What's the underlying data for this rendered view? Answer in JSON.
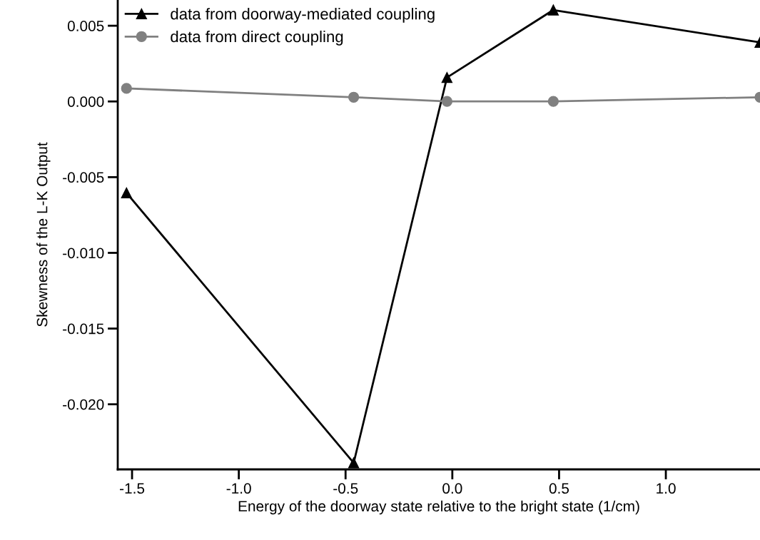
{
  "chart_data": {
    "type": "line",
    "xlabel": "Energy of the doorway state relative to the bright state (1/cm)",
    "ylabel": "Skewness of the L-K Output",
    "xlim": [
      -1.567,
      1.441
    ],
    "ylim": [
      -0.0243,
      0.0067
    ],
    "xticks": [
      {
        "value": -1.5,
        "label": "-1.5"
      },
      {
        "value": -1.0,
        "label": "-1.0"
      },
      {
        "value": -0.5,
        "label": "-0.5"
      },
      {
        "value": 0.0,
        "label": "0.0"
      },
      {
        "value": 0.5,
        "label": "0.5"
      },
      {
        "value": 1.0,
        "label": "1.0"
      }
    ],
    "yticks": [
      {
        "value": -0.02,
        "label": "-0.020"
      },
      {
        "value": -0.015,
        "label": "-0.015"
      },
      {
        "value": -0.01,
        "label": "-0.010"
      },
      {
        "value": -0.005,
        "label": "-0.005"
      },
      {
        "value": 0.0,
        "label": "0.000"
      },
      {
        "value": 0.005,
        "label": "0.005"
      }
    ],
    "grid": false,
    "legend": "top left",
    "series": [
      {
        "name": "data from doorway-mediated coupling",
        "color": "#000000",
        "marker": "triangle",
        "x": [
          -1.526,
          -0.462,
          -0.025,
          0.473,
          1.441
        ],
        "values": [
          -0.00604,
          -0.02387,
          0.00158,
          0.00604,
          0.0039
        ]
      },
      {
        "name": "data from direct coupling",
        "color": "#808080",
        "marker": "circle",
        "x": [
          -1.526,
          -0.462,
          -0.025,
          0.473,
          1.441
        ],
        "values": [
          0.00086,
          0.00028,
          0.0,
          0.0,
          0.00028
        ]
      }
    ]
  }
}
